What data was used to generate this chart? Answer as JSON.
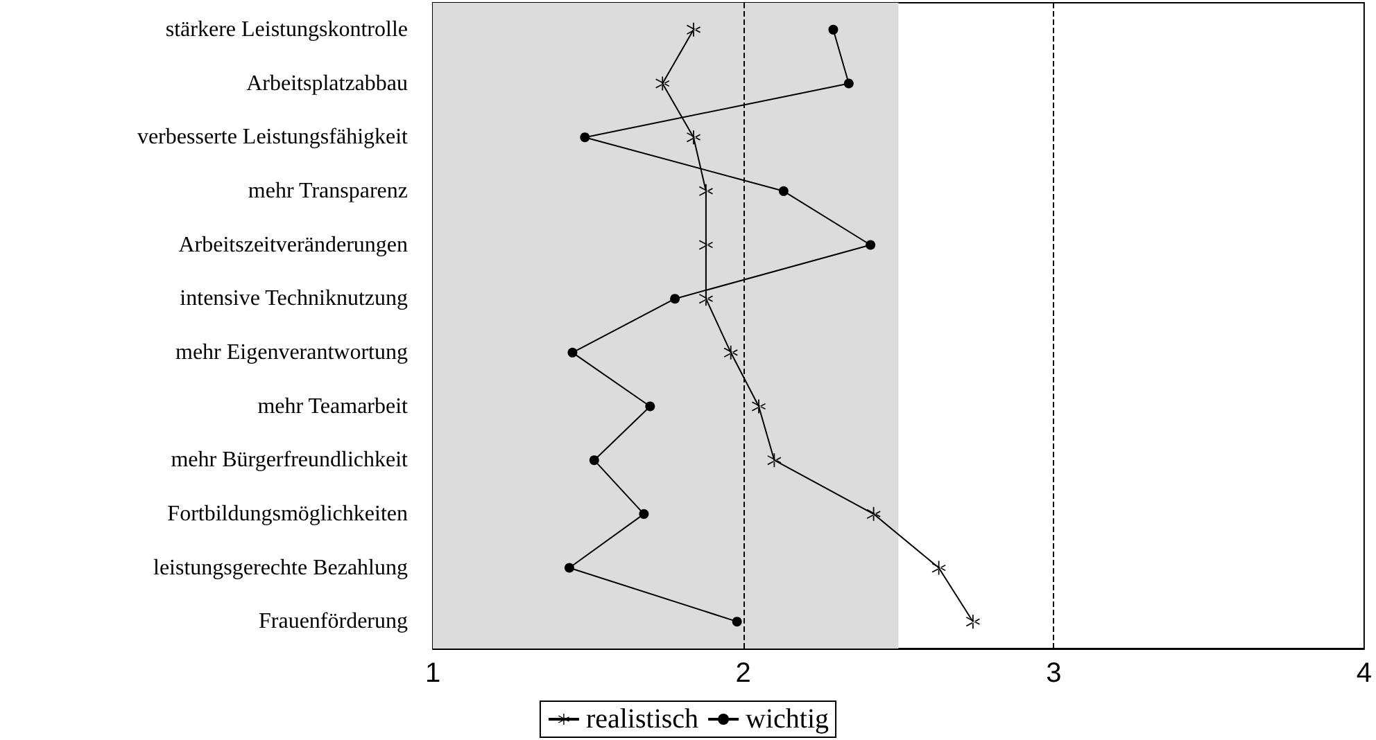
{
  "chart_data": {
    "type": "line",
    "orientation": "horizontal",
    "categories": [
      "stärkere Leistungskontrolle",
      "Arbeitsplatzabbau",
      "verbesserte Leistungsfähigkeit",
      "mehr Transparenz",
      "Arbeitszeitveränderungen",
      "intensive Techniknutzung",
      "mehr Eigenverantwortung",
      "mehr Teamarbeit",
      "mehr Bürgerfreundlichkeit",
      "Fortbildungsmöglichkeiten",
      "leistungsgerechte Bezahlung",
      "Frauenförderung"
    ],
    "series": [
      {
        "name": "realistisch",
        "color": "#000000",
        "marker": "cross",
        "values": [
          1.84,
          1.74,
          1.84,
          1.88,
          1.88,
          1.88,
          1.96,
          2.05,
          2.1,
          2.42,
          2.63,
          2.74
        ]
      },
      {
        "name": "wichtig",
        "color": "#000000",
        "marker": "circle",
        "values": [
          2.29,
          2.34,
          1.49,
          2.13,
          2.41,
          1.78,
          1.45,
          1.7,
          1.52,
          1.68,
          1.44,
          1.98
        ]
      }
    ],
    "xlim": [
      1,
      4
    ],
    "xticks": [
      1,
      2,
      3,
      4
    ],
    "grid": false,
    "legend": "bottom",
    "line_style": "solid",
    "bands": [
      {
        "axis": "x",
        "from": 1,
        "to": 2.5,
        "color": "#dcdcdc"
      }
    ],
    "ref_lines": [
      {
        "axis": "x",
        "value": 2,
        "line_style": "dashed",
        "color": "#000000"
      },
      {
        "axis": "x",
        "value": 3,
        "line_style": "dashed",
        "color": "#000000"
      }
    ]
  }
}
